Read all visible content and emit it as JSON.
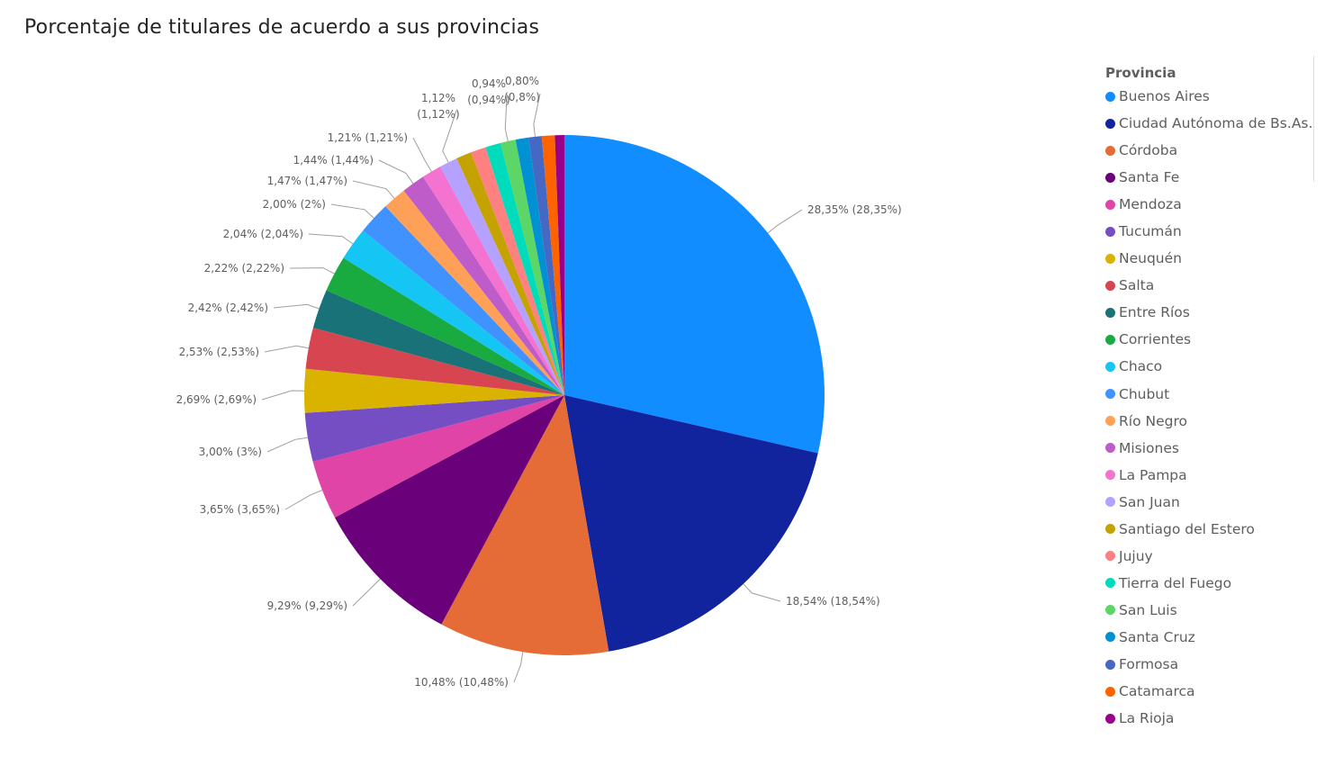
{
  "chart_data": {
    "type": "pie",
    "title": "Porcentaje de titulares de acuerdo a sus provincias",
    "legend_title": "Provincia",
    "legend_position": "right",
    "slices": [
      {
        "name": "Buenos Aires",
        "value": 28.35,
        "label": "28,35% (28,35%)",
        "color": "#118DFF"
      },
      {
        "name": "Ciudad Autónoma de Bs.As.",
        "value": 18.54,
        "label": "18,54% (18,54%)",
        "color": "#12239E"
      },
      {
        "name": "Córdoba",
        "value": 10.48,
        "label": "10,48% (10,48%)",
        "color": "#E66C37"
      },
      {
        "name": "Santa Fe",
        "value": 9.29,
        "label": "9,29% (9,29%)",
        "color": "#6B007B"
      },
      {
        "name": "Mendoza",
        "value": 3.65,
        "label": "3,65% (3,65%)",
        "color": "#E044A7"
      },
      {
        "name": "Tucumán",
        "value": 3.0,
        "label": "3,00% (3%)",
        "color": "#744EC2"
      },
      {
        "name": "Neuquén",
        "value": 2.69,
        "label": "2,69% (2,69%)",
        "color": "#D9B300"
      },
      {
        "name": "Salta",
        "value": 2.53,
        "label": "2,53% (2,53%)",
        "color": "#D64550"
      },
      {
        "name": "Entre Ríos",
        "value": 2.42,
        "label": "2,42% (2,42%)",
        "color": "#197278"
      },
      {
        "name": "Corrientes",
        "value": 2.22,
        "label": "2,22% (2,22%)",
        "color": "#1AAB40"
      },
      {
        "name": "Chaco",
        "value": 2.04,
        "label": "2,04% (2,04%)",
        "color": "#15C6F4"
      },
      {
        "name": "Chubut",
        "value": 2.0,
        "label": "2,00% (2%)",
        "color": "#4092FF"
      },
      {
        "name": "Río Negro",
        "value": 1.47,
        "label": "1,47% (1,47%)",
        "color": "#FFA058"
      },
      {
        "name": "Misiones",
        "value": 1.44,
        "label": "1,44% (1,44%)",
        "color": "#BE5DC9"
      },
      {
        "name": "La Pampa",
        "value": 1.21,
        "label": "1,21% (1,21%)",
        "color": "#F472D0"
      },
      {
        "name": "San Juan",
        "value": 1.12,
        "label": "1,12% (1,12%)",
        "color": "#B5A1FF"
      },
      {
        "name": "Santiago del Estero",
        "value": 0.94,
        "label": "",
        "color": "#C4A200"
      },
      {
        "name": "Jujuy",
        "value": 0.94,
        "label": "",
        "color": "#FF8080"
      },
      {
        "name": "Tierra del Fuego",
        "value": 0.94,
        "label": "",
        "color": "#00DBBC"
      },
      {
        "name": "San Luis",
        "value": 0.94,
        "label": "0,94% (0,94%)",
        "color": "#5BD667"
      },
      {
        "name": "Santa Cruz",
        "value": 0.8,
        "label": "",
        "color": "#0091D5"
      },
      {
        "name": "Formosa",
        "value": 0.8,
        "label": "0,80% (0,8%)",
        "color": "#4668C5"
      },
      {
        "name": "Catamarca",
        "value": 0.8,
        "label": "",
        "color": "#FF6300"
      },
      {
        "name": "La Rioja",
        "value": 0.58,
        "label": "",
        "color": "#99008A"
      }
    ]
  }
}
